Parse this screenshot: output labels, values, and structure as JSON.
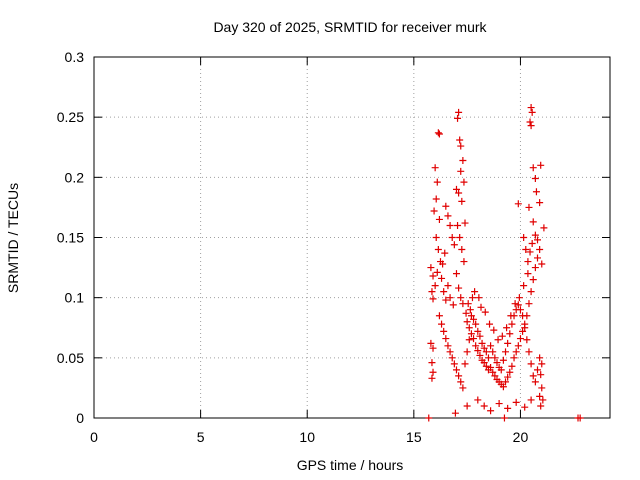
{
  "chart_data": {
    "type": "scatter",
    "title": "Day 320 of 2025, SRMTID for receiver murk",
    "xlabel": "GPS time / hours",
    "ylabel": "SRMTID / TECUs",
    "xlim": [
      0,
      24.2
    ],
    "ylim": [
      0,
      0.3
    ],
    "xticks": [
      0,
      5,
      10,
      15,
      20
    ],
    "yticks": [
      0,
      0.05,
      0.1,
      0.15,
      0.2,
      0.25,
      0.3
    ],
    "ytick_labels": [
      "0",
      "0.05",
      "0.1",
      "0.15",
      "0.2",
      "0.25",
      "0.3"
    ],
    "grid": true,
    "marker": "+",
    "series_color": "#e00000",
    "points": [
      [
        16.15,
        0.237
      ],
      [
        16.2,
        0.236
      ],
      [
        17.1,
        0.254
      ],
      [
        17.05,
        0.249
      ],
      [
        17.15,
        0.231
      ],
      [
        17.2,
        0.226
      ],
      [
        20.5,
        0.258
      ],
      [
        20.55,
        0.254
      ],
      [
        20.45,
        0.246
      ],
      [
        20.5,
        0.243
      ],
      [
        16.0,
        0.208
      ],
      [
        16.1,
        0.196
      ],
      [
        16.05,
        0.182
      ],
      [
        15.95,
        0.172
      ],
      [
        16.2,
        0.165
      ],
      [
        17.3,
        0.214
      ],
      [
        17.2,
        0.205
      ],
      [
        17.35,
        0.196
      ],
      [
        17.0,
        0.19
      ],
      [
        17.1,
        0.187
      ],
      [
        17.25,
        0.18
      ],
      [
        16.5,
        0.176
      ],
      [
        16.6,
        0.168
      ],
      [
        16.7,
        0.16
      ],
      [
        16.8,
        0.15
      ],
      [
        16.9,
        0.144
      ],
      [
        17.4,
        0.162
      ],
      [
        20.6,
        0.208
      ],
      [
        20.7,
        0.199
      ],
      [
        20.75,
        0.188
      ],
      [
        20.9,
        0.179
      ],
      [
        20.4,
        0.175
      ],
      [
        20.95,
        0.21
      ],
      [
        19.9,
        0.178
      ],
      [
        20.6,
        0.163
      ],
      [
        20.7,
        0.152
      ],
      [
        20.8,
        0.148
      ],
      [
        21.1,
        0.158
      ],
      [
        15.8,
        0.125
      ],
      [
        15.9,
        0.118
      ],
      [
        16.0,
        0.11
      ],
      [
        15.85,
        0.105
      ],
      [
        15.9,
        0.099
      ],
      [
        16.1,
        0.121
      ],
      [
        16.3,
        0.116
      ],
      [
        16.4,
        0.105
      ],
      [
        16.5,
        0.098
      ],
      [
        16.6,
        0.11
      ],
      [
        16.7,
        0.1
      ],
      [
        16.85,
        0.094
      ],
      [
        17.0,
        0.12
      ],
      [
        17.1,
        0.108
      ],
      [
        17.2,
        0.1
      ],
      [
        17.3,
        0.095
      ],
      [
        17.45,
        0.087
      ],
      [
        17.5,
        0.08
      ],
      [
        17.6,
        0.075
      ],
      [
        17.7,
        0.07
      ],
      [
        17.8,
        0.066
      ],
      [
        17.9,
        0.06
      ],
      [
        18.0,
        0.056
      ],
      [
        18.1,
        0.052
      ],
      [
        18.2,
        0.048
      ],
      [
        18.3,
        0.046
      ],
      [
        18.4,
        0.043
      ],
      [
        18.5,
        0.04
      ],
      [
        18.6,
        0.042
      ],
      [
        18.7,
        0.038
      ],
      [
        18.8,
        0.035
      ],
      [
        18.9,
        0.032
      ],
      [
        19.0,
        0.03
      ],
      [
        19.1,
        0.028
      ],
      [
        19.2,
        0.026
      ],
      [
        19.3,
        0.03
      ],
      [
        19.4,
        0.034
      ],
      [
        19.5,
        0.038
      ],
      [
        19.6,
        0.043
      ],
      [
        19.7,
        0.05
      ],
      [
        19.8,
        0.055
      ],
      [
        19.9,
        0.06
      ],
      [
        20.0,
        0.066
      ],
      [
        20.1,
        0.072
      ],
      [
        20.2,
        0.078
      ],
      [
        20.3,
        0.085
      ],
      [
        20.4,
        0.095
      ],
      [
        20.5,
        0.105
      ],
      [
        20.6,
        0.115
      ],
      [
        20.7,
        0.125
      ],
      [
        20.8,
        0.133
      ],
      [
        20.9,
        0.14
      ],
      [
        21.0,
        0.128
      ],
      [
        15.8,
        0.062
      ],
      [
        15.9,
        0.058
      ],
      [
        15.85,
        0.046
      ],
      [
        15.9,
        0.038
      ],
      [
        15.85,
        0.033
      ],
      [
        16.2,
        0.085
      ],
      [
        16.3,
        0.078
      ],
      [
        16.4,
        0.072
      ],
      [
        16.5,
        0.066
      ],
      [
        16.6,
        0.06
      ],
      [
        16.7,
        0.055
      ],
      [
        16.8,
        0.05
      ],
      [
        16.9,
        0.045
      ],
      [
        17.0,
        0.04
      ],
      [
        17.1,
        0.035
      ],
      [
        17.2,
        0.03
      ],
      [
        17.3,
        0.025
      ],
      [
        17.4,
        0.045
      ],
      [
        17.5,
        0.055
      ],
      [
        17.6,
        0.065
      ],
      [
        17.7,
        0.085
      ],
      [
        17.8,
        0.082
      ],
      [
        17.9,
        0.078
      ],
      [
        18.0,
        0.072
      ],
      [
        18.1,
        0.068
      ],
      [
        18.2,
        0.062
      ],
      [
        18.3,
        0.058
      ],
      [
        18.4,
        0.055
      ],
      [
        18.5,
        0.05
      ],
      [
        18.6,
        0.06
      ],
      [
        18.7,
        0.055
      ],
      [
        18.8,
        0.05
      ],
      [
        18.9,
        0.046
      ],
      [
        19.0,
        0.042
      ],
      [
        19.1,
        0.04
      ],
      [
        19.2,
        0.048
      ],
      [
        19.3,
        0.055
      ],
      [
        19.4,
        0.062
      ],
      [
        19.5,
        0.07
      ],
      [
        19.6,
        0.078
      ],
      [
        19.7,
        0.085
      ],
      [
        19.8,
        0.09
      ],
      [
        19.9,
        0.094
      ],
      [
        20.0,
        0.09
      ],
      [
        20.1,
        0.085
      ],
      [
        20.2,
        0.075
      ],
      [
        20.3,
        0.065
      ],
      [
        20.4,
        0.055
      ],
      [
        20.5,
        0.045
      ],
      [
        20.6,
        0.035
      ],
      [
        20.7,
        0.03
      ],
      [
        20.8,
        0.04
      ],
      [
        20.9,
        0.05
      ],
      [
        21.0,
        0.045
      ],
      [
        20.95,
        0.036
      ],
      [
        21.0,
        0.025
      ],
      [
        20.9,
        0.018
      ],
      [
        21.05,
        0.015
      ],
      [
        20.95,
        0.01
      ],
      [
        16.95,
        0.004
      ],
      [
        17.5,
        0.01
      ],
      [
        18.0,
        0.015
      ],
      [
        18.3,
        0.01
      ],
      [
        18.6,
        0.006
      ],
      [
        19.0,
        0.012
      ],
      [
        19.4,
        0.008
      ],
      [
        19.8,
        0.013
      ],
      [
        20.2,
        0.009
      ],
      [
        20.5,
        0.015
      ],
      [
        17.55,
        0.095
      ],
      [
        17.65,
        0.09
      ],
      [
        17.75,
        0.1
      ],
      [
        17.85,
        0.105
      ],
      [
        18.05,
        0.1
      ],
      [
        18.15,
        0.092
      ],
      [
        18.35,
        0.088
      ],
      [
        18.55,
        0.078
      ],
      [
        18.75,
        0.073
      ],
      [
        18.95,
        0.065
      ],
      [
        19.15,
        0.068
      ],
      [
        19.35,
        0.075
      ],
      [
        19.55,
        0.085
      ],
      [
        19.75,
        0.095
      ],
      [
        19.95,
        0.1
      ],
      [
        20.15,
        0.11
      ],
      [
        20.35,
        0.12
      ],
      [
        20.15,
        0.15
      ],
      [
        20.25,
        0.14
      ],
      [
        20.35,
        0.13
      ],
      [
        20.45,
        0.138
      ],
      [
        20.55,
        0.145
      ],
      [
        16.05,
        0.15
      ],
      [
        16.15,
        0.14
      ],
      [
        16.25,
        0.13
      ],
      [
        16.35,
        0.128
      ],
      [
        16.45,
        0.137
      ],
      [
        17.05,
        0.16
      ],
      [
        17.15,
        0.15
      ],
      [
        17.25,
        0.14
      ],
      [
        17.35,
        0.13
      ],
      [
        15.7,
        0.0
      ],
      [
        19.25,
        0.0
      ],
      [
        22.7,
        0.0
      ],
      [
        22.8,
        0.0
      ]
    ]
  }
}
